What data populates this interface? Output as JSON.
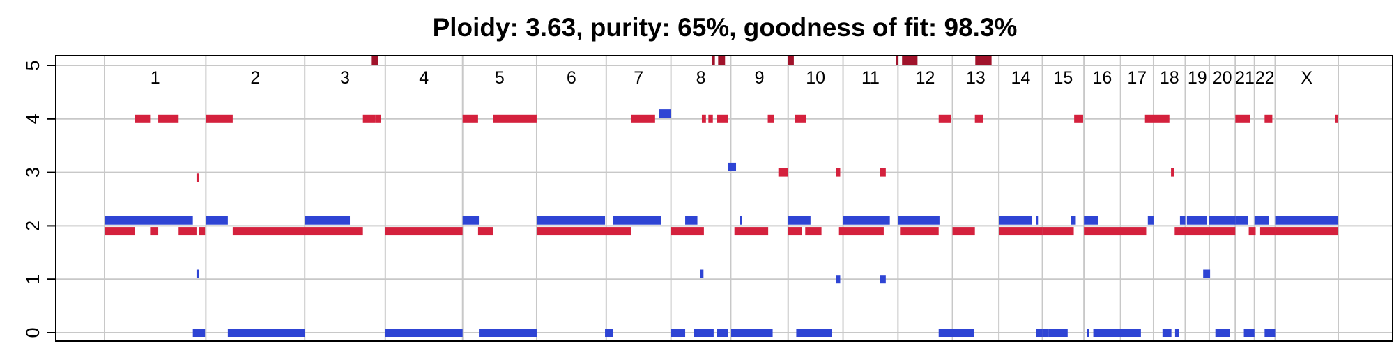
{
  "chart_data": {
    "type": "segment",
    "title": "Ploidy: 3.63, purity: 65%, goodness of fit: 98.3%",
    "xlabel": "",
    "ylabel": "",
    "ylim": [
      0,
      5
    ],
    "yticks": [
      "0",
      "1",
      "2",
      "3",
      "4",
      "5"
    ],
    "grid": true,
    "colors": {
      "major": "#d4213d",
      "minor": "#2e44d4",
      "off_scale": "#a0132b"
    },
    "chromosomes": [
      {
        "name": "1",
        "start": 0,
        "end": 249
      },
      {
        "name": "2",
        "start": 249,
        "end": 492
      },
      {
        "name": "3",
        "start": 492,
        "end": 690
      },
      {
        "name": "4",
        "start": 690,
        "end": 880
      },
      {
        "name": "5",
        "start": 880,
        "end": 1062
      },
      {
        "name": "6",
        "start": 1062,
        "end": 1233
      },
      {
        "name": "7",
        "start": 1233,
        "end": 1392
      },
      {
        "name": "8",
        "start": 1392,
        "end": 1539
      },
      {
        "name": "9",
        "start": 1539,
        "end": 1680
      },
      {
        "name": "10",
        "start": 1680,
        "end": 1815
      },
      {
        "name": "11",
        "start": 1815,
        "end": 1950
      },
      {
        "name": "12",
        "start": 1950,
        "end": 2084
      },
      {
        "name": "13",
        "start": 2084,
        "end": 2198
      },
      {
        "name": "14",
        "start": 2198,
        "end": 2305
      },
      {
        "name": "15",
        "start": 2305,
        "end": 2407
      },
      {
        "name": "16",
        "start": 2407,
        "end": 2497
      },
      {
        "name": "17",
        "start": 2497,
        "end": 2578
      },
      {
        "name": "18",
        "start": 2578,
        "end": 2656
      },
      {
        "name": "19",
        "start": 2656,
        "end": 2715
      },
      {
        "name": "20",
        "start": 2715,
        "end": 2779
      },
      {
        "name": "21",
        "start": 2779,
        "end": 2826
      },
      {
        "name": "22",
        "start": 2826,
        "end": 2877
      },
      {
        "name": "X",
        "start": 2877,
        "end": 3032
      }
    ],
    "series": [
      {
        "values": [
          [
            0,
            75,
            1.9
          ],
          [
            75,
            112,
            4.0
          ],
          [
            112,
            132,
            1.9
          ],
          [
            132,
            182,
            4.0
          ],
          [
            182,
            226,
            1.9
          ],
          [
            226,
            232,
            2.9
          ],
          [
            232,
            247,
            1.9
          ],
          [
            249,
            315,
            4.0
          ],
          [
            315,
            635,
            1.9
          ],
          [
            635,
            665,
            4.0
          ],
          [
            665,
            680,
            4.0
          ],
          [
            690,
            880,
            1.9
          ],
          [
            880,
            918,
            4.0
          ],
          [
            918,
            955,
            1.9
          ],
          [
            955,
            1062,
            4.0
          ],
          [
            1062,
            1295,
            1.9
          ],
          [
            1295,
            1353,
            4.0
          ],
          [
            1392,
            1473,
            1.9
          ],
          [
            1468,
            1478,
            4.0
          ],
          [
            1484,
            1495,
            4.0
          ],
          [
            1504,
            1532,
            4.0
          ],
          [
            1548,
            1631,
            1.9
          ],
          [
            1630,
            1645,
            4.0
          ],
          [
            1656,
            1680,
            3.0
          ],
          [
            1680,
            1713,
            1.9
          ],
          [
            1697,
            1725,
            4.0
          ],
          [
            1722,
            1762,
            1.9
          ],
          [
            1798,
            1808,
            3.0
          ],
          [
            1805,
            1815,
            1.9
          ],
          [
            1815,
            1915,
            1.9
          ],
          [
            1905,
            1920,
            3.0
          ],
          [
            1955,
            2050,
            1.9
          ],
          [
            2050,
            2080,
            4.0
          ],
          [
            2084,
            2139,
            1.9
          ],
          [
            2139,
            2160,
            4.0
          ],
          [
            2198,
            2305,
            1.9
          ],
          [
            2305,
            2382,
            1.9
          ],
          [
            2383,
            2405,
            4.0
          ],
          [
            2407,
            2560,
            1.9
          ],
          [
            2557,
            2617,
            4.0
          ],
          [
            2621,
            2629,
            3.0
          ],
          [
            2630,
            2779,
            1.9
          ],
          [
            2779,
            2816,
            4.0
          ],
          [
            2812,
            2829,
            1.9
          ],
          [
            2840,
            2877,
            1.9
          ],
          [
            2851,
            2870,
            4.0
          ],
          [
            2877,
            3032,
            1.9
          ],
          [
            3025,
            3032,
            4.0
          ]
        ]
      },
      {
        "values": [
          [
            0,
            217,
            2.1
          ],
          [
            217,
            233,
            0.0
          ],
          [
            226,
            232,
            1.1
          ],
          [
            232,
            247,
            0.0
          ],
          [
            249,
            303,
            2.1
          ],
          [
            303,
            492,
            0.0
          ],
          [
            492,
            603,
            2.1
          ],
          [
            690,
            880,
            0.0
          ],
          [
            880,
            920,
            2.1
          ],
          [
            920,
            1062,
            0.0
          ],
          [
            1062,
            1230,
            2.1
          ],
          [
            1230,
            1250,
            0.0
          ],
          [
            1250,
            1368,
            2.1
          ],
          [
            1362,
            1392,
            4.1
          ],
          [
            1392,
            1427,
            0.0
          ],
          [
            1427,
            1457,
            2.1
          ],
          [
            1449,
            1497,
            0.0
          ],
          [
            1463,
            1472,
            1.1
          ],
          [
            1505,
            1532,
            0.0
          ],
          [
            1532,
            1552,
            3.1
          ],
          [
            1540,
            1642,
            0.0
          ],
          [
            1562,
            1567,
            2.1
          ],
          [
            1680,
            1735,
            2.1
          ],
          [
            1700,
            1788,
            0.0
          ],
          [
            1798,
            1808,
            1.0
          ],
          [
            1815,
            1930,
            2.1
          ],
          [
            1905,
            1920,
            1.0
          ],
          [
            1950,
            2052,
            2.1
          ],
          [
            2050,
            2137,
            0.0
          ],
          [
            2198,
            2280,
            2.1
          ],
          [
            2289,
            2293,
            2.1
          ],
          [
            2289,
            2305,
            0.0
          ],
          [
            2305,
            2320,
            0.0
          ],
          [
            2320,
            2367,
            0.0
          ],
          [
            2375,
            2387,
            2.1
          ],
          [
            2407,
            2441,
            2.1
          ],
          [
            2414,
            2420,
            0.0
          ],
          [
            2430,
            2547,
            0.0
          ],
          [
            2564,
            2578,
            2.1
          ],
          [
            2600,
            2622,
            0.0
          ],
          [
            2631,
            2641,
            0.0
          ],
          [
            2643,
            2656,
            2.1
          ],
          [
            2660,
            2710,
            2.1
          ],
          [
            2700,
            2717,
            1.1
          ],
          [
            2715,
            2779,
            2.1
          ],
          [
            2730,
            2765,
            0.0
          ],
          [
            2779,
            2810,
            2.1
          ],
          [
            2800,
            2826,
            0.0
          ],
          [
            2826,
            2862,
            2.1
          ],
          [
            2851,
            2877,
            0.0
          ],
          [
            2877,
            3032,
            2.1
          ]
        ]
      },
      {
        "values": [
          [
            655,
            672,
            5.0
          ],
          [
            1508,
            1525,
            5.0
          ],
          [
            1492,
            1500,
            5.0
          ],
          [
            1680,
            1694,
            5.0
          ],
          [
            1946,
            1950,
            5.0
          ],
          [
            1960,
            1998,
            5.0
          ],
          [
            2140,
            2180,
            5.0
          ]
        ]
      }
    ]
  }
}
